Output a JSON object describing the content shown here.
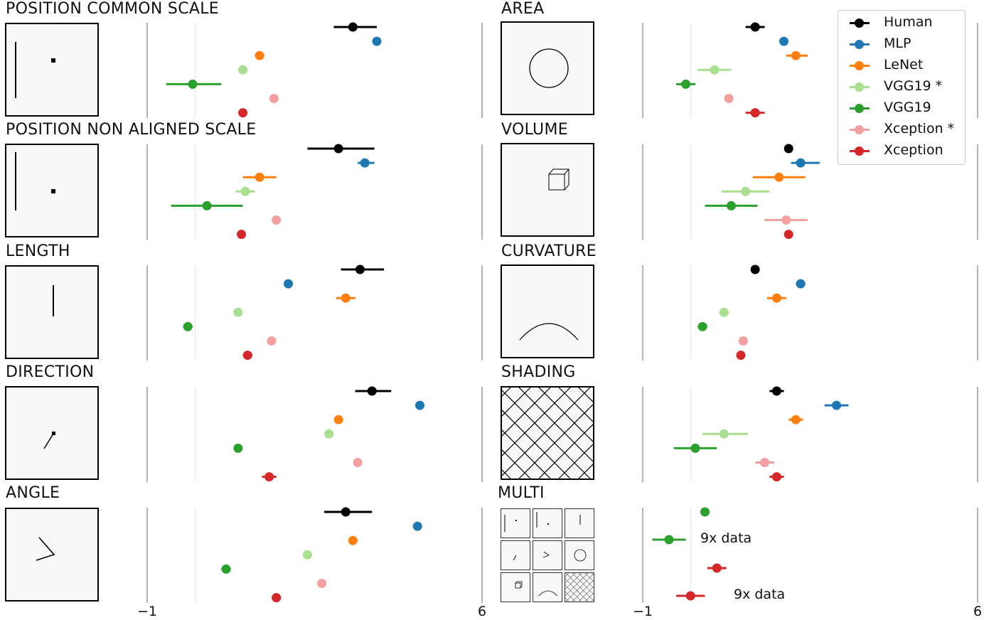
{
  "axis": {
    "min": -1,
    "max": 6,
    "tick_labels": [
      "−1",
      "6"
    ]
  },
  "colors": {
    "Human": "#000000",
    "MLP": "#1f77b4",
    "LeNet": "#ff7f0e",
    "VGG19 *": "#a8e08f",
    "VGG19": "#2ca02c",
    "Xception *": "#f4a0a0",
    "Xception": "#d62728"
  },
  "legend": [
    "Human",
    "MLP",
    "LeNet",
    "VGG19 *",
    "VGG19",
    "Xception *",
    "Xception"
  ],
  "annotations": {
    "nine_x_1": "9x data",
    "nine_x_2": "9x data"
  },
  "chart_data": {
    "type": "scatter",
    "title": "",
    "xlabel": "",
    "xlim": [
      -1,
      6
    ],
    "grid_vertical_at": [
      0
    ],
    "panels": [
      {
        "title": "POSITION COMMON SCALE",
        "stimulus": "position_common",
        "points": [
          {
            "series": "Human",
            "value": 3.3,
            "lo": 2.9,
            "hi": 3.8
          },
          {
            "series": "MLP",
            "value": 3.8,
            "lo": 3.8,
            "hi": 3.8
          },
          {
            "series": "LeNet",
            "value": 1.35,
            "lo": 1.25,
            "hi": 1.45
          },
          {
            "series": "VGG19 *",
            "value": 1.0,
            "lo": 0.9,
            "hi": 1.1
          },
          {
            "series": "VGG19",
            "value": -0.05,
            "lo": -0.6,
            "hi": 0.55
          },
          {
            "series": "Xception *",
            "value": 1.65,
            "lo": 1.65,
            "hi": 1.65
          },
          {
            "series": "Xception",
            "value": 1.0,
            "lo": 1.0,
            "hi": 1.0
          }
        ]
      },
      {
        "title": "POSITION NON ALIGNED SCALE",
        "stimulus": "position_non_aligned",
        "points": [
          {
            "series": "Human",
            "value": 3.0,
            "lo": 2.35,
            "hi": 3.75
          },
          {
            "series": "MLP",
            "value": 3.55,
            "lo": 3.4,
            "hi": 3.75
          },
          {
            "series": "LeNet",
            "value": 1.35,
            "lo": 1.0,
            "hi": 1.7
          },
          {
            "series": "VGG19 *",
            "value": 1.05,
            "lo": 0.85,
            "hi": 1.25
          },
          {
            "series": "VGG19",
            "value": 0.25,
            "lo": -0.5,
            "hi": 1.0
          },
          {
            "series": "Xception *",
            "value": 1.7,
            "lo": 1.7,
            "hi": 1.7
          },
          {
            "series": "Xception",
            "value": 0.97,
            "lo": 0.97,
            "hi": 0.97
          }
        ]
      },
      {
        "title": "LENGTH",
        "stimulus": "length",
        "points": [
          {
            "series": "Human",
            "value": 3.45,
            "lo": 3.05,
            "hi": 3.95
          },
          {
            "series": "MLP",
            "value": 1.95,
            "lo": 1.95,
            "hi": 1.95
          },
          {
            "series": "LeNet",
            "value": 3.15,
            "lo": 2.95,
            "hi": 3.35
          },
          {
            "series": "VGG19 *",
            "value": 0.9,
            "lo": 0.9,
            "hi": 0.9
          },
          {
            "series": "VGG19",
            "value": -0.15,
            "lo": -0.25,
            "hi": -0.05
          },
          {
            "series": "Xception *",
            "value": 1.6,
            "lo": 1.6,
            "hi": 1.6
          },
          {
            "series": "Xception",
            "value": 1.1,
            "lo": 1.0,
            "hi": 1.2
          }
        ]
      },
      {
        "title": "DIRECTION",
        "stimulus": "direction",
        "points": [
          {
            "series": "Human",
            "value": 3.7,
            "lo": 3.35,
            "hi": 4.1
          },
          {
            "series": "MLP",
            "value": 4.7,
            "lo": 4.7,
            "hi": 4.7
          },
          {
            "series": "LeNet",
            "value": 3.0,
            "lo": 3.0,
            "hi": 3.0
          },
          {
            "series": "VGG19 *",
            "value": 2.8,
            "lo": 2.8,
            "hi": 2.8
          },
          {
            "series": "VGG19",
            "value": 0.9,
            "lo": 0.9,
            "hi": 0.9
          },
          {
            "series": "Xception *",
            "value": 3.4,
            "lo": 3.4,
            "hi": 3.4
          },
          {
            "series": "Xception",
            "value": 1.55,
            "lo": 1.4,
            "hi": 1.7
          }
        ]
      },
      {
        "title": "ANGLE",
        "stimulus": "angle",
        "points": [
          {
            "series": "Human",
            "value": 3.15,
            "lo": 2.7,
            "hi": 3.7
          },
          {
            "series": "MLP",
            "value": 4.65,
            "lo": 4.65,
            "hi": 4.65
          },
          {
            "series": "LeNet",
            "value": 3.3,
            "lo": 3.3,
            "hi": 3.3
          },
          {
            "series": "VGG19 *",
            "value": 2.35,
            "lo": 2.35,
            "hi": 2.35
          },
          {
            "series": "VGG19",
            "value": 0.65,
            "lo": 0.55,
            "hi": 0.75
          },
          {
            "series": "Xception *",
            "value": 2.65,
            "lo": 2.65,
            "hi": 2.65
          },
          {
            "series": "Xception",
            "value": 1.7,
            "lo": 1.7,
            "hi": 1.7
          }
        ]
      },
      {
        "title": "AREA",
        "stimulus": "area",
        "points": [
          {
            "series": "Human",
            "value": 1.35,
            "lo": 1.15,
            "hi": 1.55
          },
          {
            "series": "MLP",
            "value": 1.95,
            "lo": 1.95,
            "hi": 1.95
          },
          {
            "series": "LeNet",
            "value": 2.2,
            "lo": 2.0,
            "hi": 2.45
          },
          {
            "series": "VGG19 *",
            "value": 0.5,
            "lo": 0.15,
            "hi": 0.85
          },
          {
            "series": "VGG19",
            "value": -0.1,
            "lo": -0.3,
            "hi": 0.1
          },
          {
            "series": "Xception *",
            "value": 0.8,
            "lo": 0.8,
            "hi": 0.8
          },
          {
            "series": "Xception",
            "value": 1.35,
            "lo": 1.15,
            "hi": 1.55
          }
        ]
      },
      {
        "title": "VOLUME",
        "stimulus": "volume",
        "points": [
          {
            "series": "Human",
            "value": 2.05,
            "lo": 2.05,
            "hi": 2.05
          },
          {
            "series": "MLP",
            "value": 2.3,
            "lo": 2.1,
            "hi": 2.7
          },
          {
            "series": "LeNet",
            "value": 1.85,
            "lo": 1.3,
            "hi": 2.4
          },
          {
            "series": "VGG19 *",
            "value": 1.15,
            "lo": 0.65,
            "hi": 1.65
          },
          {
            "series": "VGG19",
            "value": 0.85,
            "lo": 0.3,
            "hi": 1.4
          },
          {
            "series": "Xception *",
            "value": 2.0,
            "lo": 1.55,
            "hi": 2.45
          },
          {
            "series": "Xception",
            "value": 2.05,
            "lo": 2.05,
            "hi": 2.05
          }
        ]
      },
      {
        "title": "CURVATURE",
        "stimulus": "curvature",
        "points": [
          {
            "series": "Human",
            "value": 1.35,
            "lo": 1.35,
            "hi": 1.35
          },
          {
            "series": "MLP",
            "value": 2.3,
            "lo": 2.2,
            "hi": 2.4
          },
          {
            "series": "LeNet",
            "value": 1.8,
            "lo": 1.6,
            "hi": 2.0
          },
          {
            "series": "VGG19 *",
            "value": 0.7,
            "lo": 0.6,
            "hi": 0.8
          },
          {
            "series": "VGG19",
            "value": 0.25,
            "lo": 0.15,
            "hi": 0.35
          },
          {
            "series": "Xception *",
            "value": 1.1,
            "lo": 1.1,
            "hi": 1.1
          },
          {
            "series": "Xception",
            "value": 1.05,
            "lo": 1.05,
            "hi": 1.05
          }
        ]
      },
      {
        "title": "SHADING",
        "stimulus": "shading",
        "points": [
          {
            "series": "Human",
            "value": 1.8,
            "lo": 1.65,
            "hi": 1.95
          },
          {
            "series": "MLP",
            "value": 3.05,
            "lo": 2.8,
            "hi": 3.3
          },
          {
            "series": "LeNet",
            "value": 2.2,
            "lo": 2.05,
            "hi": 2.35
          },
          {
            "series": "VGG19 *",
            "value": 0.7,
            "lo": 0.25,
            "hi": 1.2
          },
          {
            "series": "VGG19",
            "value": 0.1,
            "lo": -0.35,
            "hi": 0.55
          },
          {
            "series": "Xception *",
            "value": 1.55,
            "lo": 1.35,
            "hi": 1.75
          },
          {
            "series": "Xception",
            "value": 1.8,
            "lo": 1.65,
            "hi": 1.95
          }
        ]
      },
      {
        "title": "MULTI",
        "stimulus": "multi",
        "points": [
          {
            "series": "VGG19",
            "value": 0.3,
            "lo": 0.3,
            "hi": 0.3
          },
          {
            "series": "VGG19",
            "value": -0.45,
            "lo": -0.8,
            "hi": -0.1,
            "annotation": "nine_x_1"
          },
          {
            "series": "Xception",
            "value": 0.55,
            "lo": 0.35,
            "hi": 0.75
          },
          {
            "series": "Xception",
            "value": 0.0,
            "lo": -0.3,
            "hi": 0.3,
            "annotation": "nine_x_2"
          }
        ]
      }
    ]
  }
}
